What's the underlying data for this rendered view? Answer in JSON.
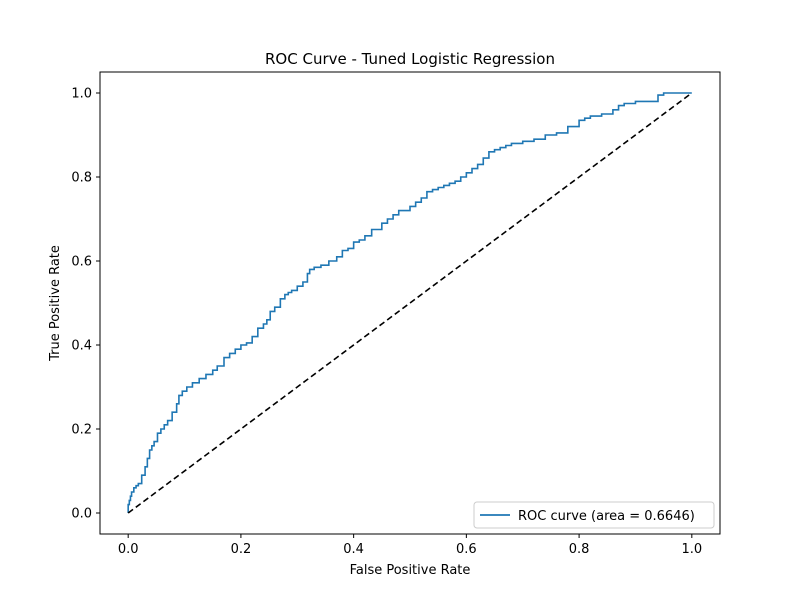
{
  "chart_data": {
    "type": "line",
    "title": "ROC Curve - Tuned Logistic Regression",
    "xlabel": "False Positive Rate",
    "ylabel": "True Positive Rate",
    "xlim": [
      -0.05,
      1.05
    ],
    "ylim": [
      -0.05,
      1.05
    ],
    "xticks": [
      0.0,
      0.2,
      0.4,
      0.6,
      0.8,
      1.0
    ],
    "yticks": [
      0.0,
      0.2,
      0.4,
      0.6,
      0.8,
      1.0
    ],
    "xtick_labels": [
      "0.0",
      "0.2",
      "0.4",
      "0.6",
      "0.8",
      "1.0"
    ],
    "ytick_labels": [
      "0.0",
      "0.2",
      "0.4",
      "0.6",
      "0.8",
      "1.0"
    ],
    "grid": false,
    "legend_position": "lower-right",
    "series": [
      {
        "name": "ROC curve (area = 0.6646)",
        "color": "#1f77b4",
        "style": "solid",
        "x": [
          0.0,
          0.002,
          0.004,
          0.006,
          0.01,
          0.014,
          0.018,
          0.024,
          0.03,
          0.034,
          0.038,
          0.042,
          0.046,
          0.052,
          0.058,
          0.064,
          0.07,
          0.078,
          0.086,
          0.09,
          0.096,
          0.104,
          0.114,
          0.126,
          0.138,
          0.15,
          0.158,
          0.17,
          0.18,
          0.19,
          0.2,
          0.21,
          0.22,
          0.23,
          0.24,
          0.246,
          0.252,
          0.26,
          0.27,
          0.278,
          0.284,
          0.29,
          0.3,
          0.31,
          0.318,
          0.322,
          0.33,
          0.342,
          0.356,
          0.37,
          0.38,
          0.39,
          0.4,
          0.41,
          0.42,
          0.432,
          0.45,
          0.46,
          0.47,
          0.48,
          0.49,
          0.5,
          0.51,
          0.52,
          0.53,
          0.54,
          0.55,
          0.56,
          0.57,
          0.58,
          0.59,
          0.6,
          0.61,
          0.62,
          0.63,
          0.64,
          0.65,
          0.66,
          0.67,
          0.68,
          0.7,
          0.72,
          0.74,
          0.76,
          0.78,
          0.8,
          0.81,
          0.82,
          0.84,
          0.86,
          0.87,
          0.88,
          0.9,
          0.94,
          0.95,
          1.0
        ],
        "y": [
          0.0,
          0.02,
          0.03,
          0.04,
          0.05,
          0.06,
          0.065,
          0.07,
          0.09,
          0.11,
          0.13,
          0.15,
          0.16,
          0.17,
          0.19,
          0.2,
          0.21,
          0.22,
          0.24,
          0.26,
          0.28,
          0.29,
          0.3,
          0.31,
          0.32,
          0.33,
          0.34,
          0.35,
          0.37,
          0.38,
          0.39,
          0.4,
          0.405,
          0.42,
          0.44,
          0.45,
          0.46,
          0.48,
          0.49,
          0.51,
          0.52,
          0.525,
          0.53,
          0.54,
          0.55,
          0.57,
          0.58,
          0.585,
          0.59,
          0.6,
          0.61,
          0.625,
          0.63,
          0.645,
          0.65,
          0.66,
          0.675,
          0.69,
          0.7,
          0.71,
          0.72,
          0.72,
          0.73,
          0.74,
          0.75,
          0.765,
          0.77,
          0.775,
          0.78,
          0.785,
          0.79,
          0.8,
          0.81,
          0.82,
          0.83,
          0.845,
          0.86,
          0.865,
          0.87,
          0.875,
          0.88,
          0.885,
          0.89,
          0.9,
          0.905,
          0.92,
          0.935,
          0.94,
          0.945,
          0.95,
          0.96,
          0.97,
          0.975,
          0.98,
          0.995,
          1.0
        ]
      },
      {
        "name": "",
        "color": "#000000",
        "style": "dashed",
        "x": [
          0.0,
          1.0
        ],
        "y": [
          0.0,
          1.0
        ]
      }
    ]
  }
}
